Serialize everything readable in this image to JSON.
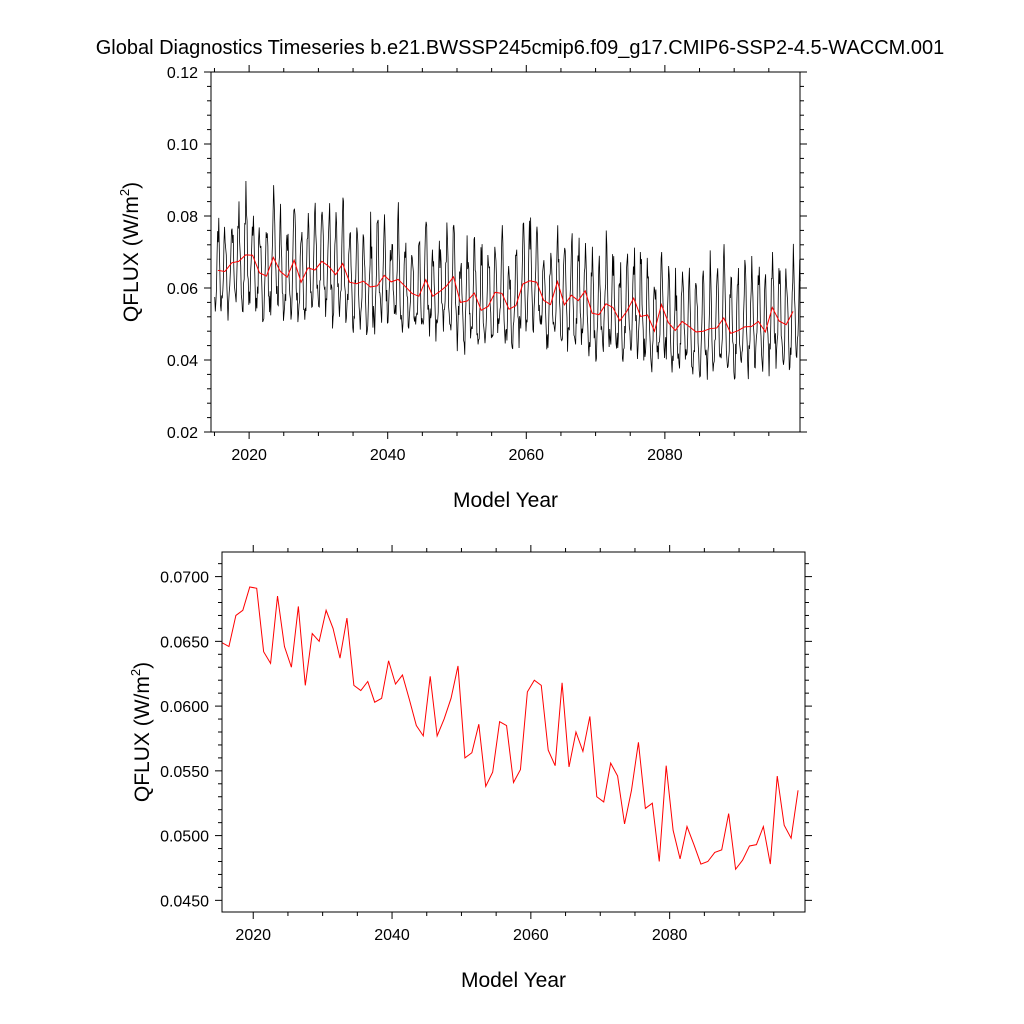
{
  "title": "Global Diagnostics Timeseries b.e21.BWSSP245cmip6.f09_g17.CMIP6-SSP2-4.5-WACCM.001",
  "chart_data": [
    {
      "type": "line",
      "xlabel": "Model Year",
      "ylabel_main": "QFLUX (W/m",
      "ylabel_sup": "2",
      "ylabel_close": ")",
      "xlim": [
        2014.5,
        2099.5
      ],
      "ylim": [
        0.02,
        0.12
      ],
      "xticks": [
        2020,
        2040,
        2060,
        2080
      ],
      "xtick_labels": [
        "2020",
        "2040",
        "2060",
        "2080"
      ],
      "yticks": [
        0.02,
        0.04,
        0.06,
        0.08,
        0.1,
        0.12
      ],
      "ytick_labels": [
        "0.02",
        "0.04",
        "0.06",
        "0.08",
        "0.10",
        "0.12"
      ],
      "series": [
        {
          "color": "#000000",
          "monthly_start": 2015.04,
          "monthly_step": 0.0833333,
          "annual_mean_anchor": "series_1.values",
          "seasonal_amp_peak": 0.022,
          "seasonal_amp_trough": 0.01,
          "noise": 0.004,
          "seed": 17
        },
        {
          "color": "#ff0000",
          "x_start": 2015.5,
          "x_step": 1,
          "values": [
            0.0649,
            0.0646,
            0.067,
            0.0674,
            0.0692,
            0.0691,
            0.0642,
            0.0633,
            0.0685,
            0.0646,
            0.063,
            0.0677,
            0.0616,
            0.0656,
            0.065,
            0.0674,
            0.066,
            0.0637,
            0.0668,
            0.0616,
            0.0612,
            0.0619,
            0.0603,
            0.0606,
            0.0635,
            0.0617,
            0.0624,
            0.0605,
            0.0585,
            0.0577,
            0.0623,
            0.0577,
            0.059,
            0.0606,
            0.0631,
            0.056,
            0.0564,
            0.0586,
            0.0538,
            0.0549,
            0.0588,
            0.0585,
            0.0541,
            0.0551,
            0.0611,
            0.062,
            0.0616,
            0.0566,
            0.0554,
            0.0618,
            0.0553,
            0.058,
            0.0565,
            0.0592,
            0.053,
            0.0526,
            0.0556,
            0.0546,
            0.0509,
            0.0535,
            0.0572,
            0.0521,
            0.0525,
            0.048,
            0.0554,
            0.0504,
            0.0482,
            0.0507,
            0.0493,
            0.0478,
            0.048,
            0.0487,
            0.0489,
            0.0517,
            0.0474,
            0.0481,
            0.0492,
            0.0493,
            0.0507,
            0.0478,
            0.0546,
            0.0508,
            0.0498,
            0.0535
          ]
        }
      ]
    },
    {
      "type": "line",
      "xlabel": "Model Year",
      "ylabel_main": "QFLUX (W/m",
      "ylabel_sup": "2",
      "ylabel_close": ")",
      "xlim": [
        2015.5,
        2099.5
      ],
      "ylim": [
        0.0441,
        0.0719
      ],
      "xticks": [
        2020,
        2040,
        2060,
        2080
      ],
      "xtick_labels": [
        "2020",
        "2040",
        "2060",
        "2080"
      ],
      "yticks": [
        0.045,
        0.05,
        0.055,
        0.06,
        0.065,
        0.07
      ],
      "ytick_labels": [
        "0.0450",
        "0.0500",
        "0.0550",
        "0.0600",
        "0.0650",
        "0.0700"
      ],
      "series": [
        {
          "color": "#ff0000",
          "values_from": "chart_data.0.series.1"
        }
      ]
    }
  ]
}
